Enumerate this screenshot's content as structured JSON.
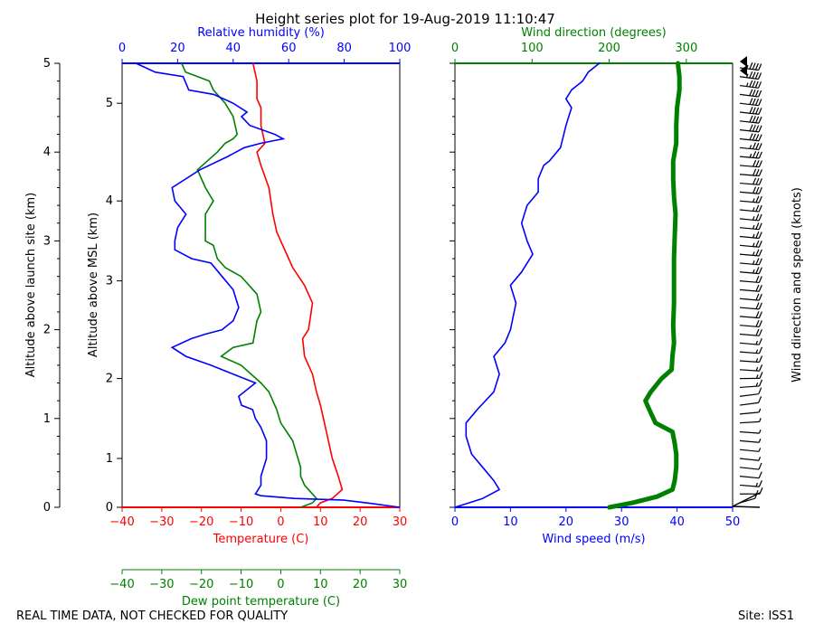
{
  "title": "Height series plot for 19-Aug-2019 11:10:47",
  "footer_left": "REAL TIME DATA, NOT CHECKED FOR QUALITY",
  "footer_right": "Site: ISS1",
  "colors": {
    "temp": "#ff0000",
    "dew": "#008000",
    "rh": "#0000ff",
    "wspd": "#0000ff",
    "wdir": "#008000",
    "axis": "#000000"
  },
  "chart_data": [
    {
      "type": "line",
      "name": "thermo-panel",
      "title": "Height series plot for 19-Aug-2019 11:10:47",
      "left_axis": {
        "label": "Altitude above launch site (km)",
        "range": [
          0,
          5
        ],
        "ticks": [
          "0",
          "1",
          "2",
          "3",
          "4",
          "5"
        ]
      },
      "msl_axis": {
        "label": "Altitude above MSL (km)",
        "ticks": [
          "1",
          "2",
          "3",
          "4",
          "5"
        ],
        "tick_km_agl": [
          0.55,
          1.45,
          2.55,
          3.45,
          4.55
        ]
      },
      "temperature_axis": {
        "label": "Temperature (C)",
        "range": [
          -40,
          30
        ],
        "ticks": [
          "−40",
          "−30",
          "−20",
          "−10",
          "0",
          "10",
          "20",
          "30"
        ]
      },
      "dewpoint_axis": {
        "label": "Dew point temperature (C)",
        "range": [
          -40,
          30
        ],
        "ticks": [
          "−40",
          "−30",
          "−20",
          "−10",
          "0",
          "10",
          "20",
          "30"
        ]
      },
      "rh_axis": {
        "label": "Relative humidity (%)",
        "range": [
          0,
          100
        ],
        "ticks": [
          "0",
          "20",
          "40",
          "60",
          "80",
          "100"
        ]
      },
      "series": [
        {
          "name": "Temperature",
          "x_axis": "temperature",
          "points": [
            [
              9,
              0.0
            ],
            [
              10,
              0.05
            ],
            [
              13,
              0.1
            ],
            [
              15.5,
              0.2
            ],
            [
              14.5,
              0.35
            ],
            [
              13,
              0.55
            ],
            [
              12,
              0.75
            ],
            [
              11,
              0.95
            ],
            [
              10,
              1.15
            ],
            [
              9,
              1.3
            ],
            [
              8,
              1.5
            ],
            [
              6,
              1.7
            ],
            [
              5.5,
              1.9
            ],
            [
              7,
              2.0
            ],
            [
              8,
              2.3
            ],
            [
              6,
              2.5
            ],
            [
              3,
              2.7
            ],
            [
              2,
              2.8
            ],
            [
              0,
              3.0
            ],
            [
              -1,
              3.1
            ],
            [
              -2,
              3.3
            ],
            [
              -3,
              3.6
            ],
            [
              -5,
              3.85
            ],
            [
              -6,
              4.0
            ],
            [
              -4,
              4.1
            ],
            [
              -5,
              4.3
            ],
            [
              -5,
              4.5
            ],
            [
              -6,
              4.6
            ],
            [
              -6,
              4.8
            ],
            [
              -7,
              5.0
            ]
          ]
        },
        {
          "name": "Dew point",
          "x_axis": "dewpoint",
          "points": [
            [
              5,
              0.0
            ],
            [
              8,
              0.05
            ],
            [
              9,
              0.1
            ],
            [
              8,
              0.15
            ],
            [
              6,
              0.25
            ],
            [
              5,
              0.35
            ],
            [
              5,
              0.45
            ],
            [
              4,
              0.6
            ],
            [
              3,
              0.75
            ],
            [
              0,
              0.95
            ],
            [
              -1,
              1.1
            ],
            [
              -3,
              1.3
            ],
            [
              -5,
              1.4
            ],
            [
              -10,
              1.6
            ],
            [
              -15,
              1.7
            ],
            [
              -12,
              1.8
            ],
            [
              -7,
              1.85
            ],
            [
              -6,
              2.1
            ],
            [
              -5,
              2.2
            ],
            [
              -6,
              2.4
            ],
            [
              -10,
              2.6
            ],
            [
              -14,
              2.7
            ],
            [
              -16,
              2.8
            ],
            [
              -17,
              2.95
            ],
            [
              -19,
              3.0
            ],
            [
              -19,
              3.3
            ],
            [
              -17,
              3.45
            ],
            [
              -19,
              3.6
            ],
            [
              -21,
              3.8
            ],
            [
              -16,
              4.0
            ],
            [
              -14,
              4.1
            ],
            [
              -12,
              4.15
            ],
            [
              -11,
              4.2
            ],
            [
              -12,
              4.4
            ],
            [
              -14,
              4.55
            ],
            [
              -17,
              4.7
            ],
            [
              -18,
              4.8
            ],
            [
              -24,
              4.9
            ],
            [
              -25,
              5.0
            ]
          ]
        },
        {
          "name": "Relative humidity",
          "x_axis": "rh",
          "points": [
            [
              100,
              0.0
            ],
            [
              88,
              0.05
            ],
            [
              80,
              0.08
            ],
            [
              62,
              0.1
            ],
            [
              50,
              0.13
            ],
            [
              48,
              0.15
            ],
            [
              50,
              0.25
            ],
            [
              50,
              0.35
            ],
            [
              51,
              0.45
            ],
            [
              52,
              0.55
            ],
            [
              52,
              0.75
            ],
            [
              50,
              0.9
            ],
            [
              48,
              1.0
            ],
            [
              47,
              1.1
            ],
            [
              43,
              1.15
            ],
            [
              42,
              1.25
            ],
            [
              48,
              1.4
            ],
            [
              40,
              1.5
            ],
            [
              32,
              1.6
            ],
            [
              23,
              1.7
            ],
            [
              18,
              1.8
            ],
            [
              25,
              1.9
            ],
            [
              30,
              1.95
            ],
            [
              36,
              2.0
            ],
            [
              40,
              2.1
            ],
            [
              42,
              2.25
            ],
            [
              40,
              2.45
            ],
            [
              36,
              2.6
            ],
            [
              32,
              2.75
            ],
            [
              25,
              2.8
            ],
            [
              19,
              2.9
            ],
            [
              19,
              3.0
            ],
            [
              20,
              3.15
            ],
            [
              23,
              3.3
            ],
            [
              19,
              3.45
            ],
            [
              18,
              3.6
            ],
            [
              28,
              3.8
            ],
            [
              38,
              3.95
            ],
            [
              44,
              4.05
            ],
            [
              50,
              4.1
            ],
            [
              58,
              4.15
            ],
            [
              55,
              4.2
            ],
            [
              46,
              4.3
            ],
            [
              43,
              4.4
            ],
            [
              45,
              4.45
            ],
            [
              40,
              4.55
            ],
            [
              33,
              4.65
            ],
            [
              24,
              4.7
            ],
            [
              22,
              4.85
            ],
            [
              12,
              4.9
            ],
            [
              5,
              5.0
            ]
          ]
        }
      ]
    },
    {
      "type": "line",
      "name": "wind-panel",
      "x_axis": {
        "label": "Wind speed (m/s)",
        "range": [
          0,
          50
        ],
        "ticks": [
          "0",
          "10",
          "20",
          "30",
          "40",
          "50"
        ]
      },
      "top_axis": {
        "label": "Wind direction (degrees)",
        "range": [
          0,
          360
        ],
        "ticks": [
          "0",
          "100",
          "200",
          "300"
        ]
      },
      "barb_label": "Wind direction and speed (knots)",
      "series": [
        {
          "name": "Wind speed",
          "x_axis": "speed",
          "points": [
            [
              0,
              0.0
            ],
            [
              5,
              0.1
            ],
            [
              8,
              0.2
            ],
            [
              7,
              0.3
            ],
            [
              5,
              0.45
            ],
            [
              3,
              0.6
            ],
            [
              2,
              0.8
            ],
            [
              2,
              0.95
            ],
            [
              4,
              1.1
            ],
            [
              7,
              1.3
            ],
            [
              8,
              1.5
            ],
            [
              7,
              1.7
            ],
            [
              9,
              1.85
            ],
            [
              10,
              2.0
            ],
            [
              11,
              2.3
            ],
            [
              10,
              2.5
            ],
            [
              12,
              2.65
            ],
            [
              14,
              2.85
            ],
            [
              13,
              3.0
            ],
            [
              12,
              3.2
            ],
            [
              13,
              3.4
            ],
            [
              15,
              3.55
            ],
            [
              15,
              3.7
            ],
            [
              16,
              3.85
            ],
            [
              17,
              3.9
            ],
            [
              19,
              4.05
            ],
            [
              20,
              4.3
            ],
            [
              21,
              4.5
            ],
            [
              20,
              4.6
            ],
            [
              21,
              4.7
            ],
            [
              23,
              4.8
            ],
            [
              24,
              4.9
            ],
            [
              26,
              5.0
            ]
          ]
        },
        {
          "name": "Wind direction",
          "x_axis": "direction",
          "points": [
            [
              200,
              0.0
            ],
            [
              230,
              0.05
            ],
            [
              262,
              0.12
            ],
            [
              282,
              0.2
            ],
            [
              285,
              0.3
            ],
            [
              287,
              0.45
            ],
            [
              287,
              0.6
            ],
            [
              285,
              0.72
            ],
            [
              282,
              0.85
            ],
            [
              260,
              0.95
            ],
            [
              252,
              1.1
            ],
            [
              247,
              1.2
            ],
            [
              254,
              1.3
            ],
            [
              268,
              1.45
            ],
            [
              281,
              1.55
            ],
            [
              282,
              1.7
            ],
            [
              284,
              1.85
            ],
            [
              283,
              2.05
            ],
            [
              284,
              2.3
            ],
            [
              284,
              2.55
            ],
            [
              284,
              2.8
            ],
            [
              285,
              3.05
            ],
            [
              286,
              3.3
            ],
            [
              284,
              3.5
            ],
            [
              283,
              3.7
            ],
            [
              283,
              3.9
            ],
            [
              287,
              4.1
            ],
            [
              287,
              4.3
            ],
            [
              288,
              4.5
            ],
            [
              291,
              4.7
            ],
            [
              291,
              4.85
            ],
            [
              289,
              5.0
            ]
          ]
        }
      ],
      "barb_note": ""
    }
  ]
}
